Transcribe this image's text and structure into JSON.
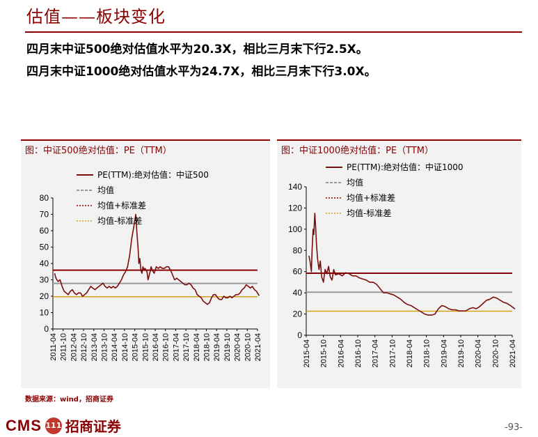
{
  "header": {
    "title": "估值——板块变化",
    "summary_1": "四月末中证500绝对估值水平为20.3X，相比三月末下行2.5X。",
    "summary_2": "四月末中证1000绝对估值水平为24.7X，相比三月末下行3.0X。"
  },
  "footer": {
    "source": "数据来源：wind，招商证券",
    "logo_text": "CMS",
    "logo_badge": "111",
    "logo_cn": "招商证券",
    "page": "-93-"
  },
  "colors": {
    "pe": "#7b0c0c",
    "mean": "#999999",
    "plus": "#8b0000",
    "minus": "#d4a017"
  },
  "chart_data": [
    {
      "type": "line",
      "panel_title": "图：中证500绝对估值：PE（TTM）",
      "ylim": [
        0,
        80
      ],
      "yticks": [
        "0",
        "10",
        "20",
        "30",
        "40",
        "50",
        "60",
        "70",
        "80"
      ],
      "xticks": [
        "2011-04",
        "2011-10",
        "2012-04",
        "2012-10",
        "2013-04",
        "2013-10",
        "2014-04",
        "2014-10",
        "2015-04",
        "2015-10",
        "2016-04",
        "2016-10",
        "2017-04",
        "2017-10",
        "2018-04",
        "2018-10",
        "2019-04",
        "2019-10",
        "2020-04",
        "2020-10",
        "2021-04"
      ],
      "legend": [
        "PE(TTM):绝对估值：中证500",
        "均值",
        "均值+标准差",
        "均值-标准差"
      ],
      "mean": 27.8,
      "plus_std": 35.9,
      "minus_std": 19.7,
      "series": [
        {
          "name": "PE(TTM):绝对估值：中证500",
          "x": [
            2011.33,
            2011.4,
            2011.5,
            2011.6,
            2011.7,
            2011.8,
            2011.9,
            2012.0,
            2012.1,
            2012.2,
            2012.3,
            2012.4,
            2012.5,
            2012.6,
            2012.7,
            2012.8,
            2012.9,
            2013.0,
            2013.1,
            2013.2,
            2013.3,
            2013.4,
            2013.5,
            2013.6,
            2013.7,
            2013.8,
            2013.9,
            2014.0,
            2014.1,
            2014.2,
            2014.3,
            2014.4,
            2014.5,
            2014.6,
            2014.7,
            2014.8,
            2014.9,
            2015.0,
            2015.1,
            2015.2,
            2015.3,
            2015.35,
            2015.42,
            2015.45,
            2015.5,
            2015.55,
            2015.6,
            2015.65,
            2015.7,
            2015.75,
            2015.85,
            2015.9,
            2016.0,
            2016.05,
            2016.1,
            2016.2,
            2016.3,
            2016.4,
            2016.5,
            2016.6,
            2016.7,
            2016.8,
            2016.9,
            2017.0,
            2017.1,
            2017.2,
            2017.3,
            2017.4,
            2017.5,
            2017.6,
            2017.7,
            2017.8,
            2017.9,
            2018.0,
            2018.1,
            2018.2,
            2018.3,
            2018.4,
            2018.5,
            2018.6,
            2018.7,
            2018.8,
            2018.9,
            2019.0,
            2019.1,
            2019.2,
            2019.3,
            2019.4,
            2019.5,
            2019.6,
            2019.7,
            2019.8,
            2019.9,
            2020.0,
            2020.1,
            2020.2,
            2020.3,
            2020.4,
            2020.5,
            2020.6,
            2020.7,
            2020.8,
            2020.9,
            2021.0,
            2021.1,
            2021.2,
            2021.33
          ],
          "y": [
            34,
            31,
            29,
            30,
            26,
            23,
            22,
            21,
            23,
            24,
            22,
            21,
            22,
            22,
            20,
            21,
            22,
            24,
            26,
            25,
            24,
            25,
            26,
            27,
            28,
            26,
            25,
            26,
            25,
            26,
            25,
            26,
            28,
            30,
            33,
            35,
            38,
            45,
            55,
            62,
            70,
            60,
            48,
            40,
            43,
            36,
            34,
            38,
            36,
            37,
            35,
            30,
            35,
            38,
            36,
            34,
            38,
            37,
            38,
            37,
            37,
            38,
            38,
            36,
            33,
            30,
            31,
            30,
            29,
            28,
            27,
            27,
            28,
            27,
            25,
            24,
            21,
            20,
            19,
            17,
            16,
            15,
            16,
            19,
            21,
            21,
            19,
            18,
            18,
            20,
            19,
            19,
            20,
            19,
            20,
            21,
            21,
            22,
            24,
            25,
            27,
            26,
            25,
            26,
            24,
            23,
            20.3
          ]
        }
      ]
    },
    {
      "type": "line",
      "panel_title": "图：中证1000绝对估值：PE（TTM）",
      "ylim": [
        0,
        140
      ],
      "yticks": [
        "0",
        "20",
        "40",
        "60",
        "80",
        "100",
        "120",
        "140"
      ],
      "xticks": [
        "2015-04",
        "2015-10",
        "2016-04",
        "2016-10",
        "2017-04",
        "2017-10",
        "2018-04",
        "2018-10",
        "2019-04",
        "2019-10",
        "2020-04",
        "2020-10",
        "2021-04"
      ],
      "legend": [
        "PE(TTM):绝对估值：中证1000",
        "均值",
        "均值+标准差",
        "均值-标准差"
      ],
      "mean": 40.6,
      "plus_std": 58.5,
      "minus_std": 22.7,
      "series": [
        {
          "name": "PE(TTM):绝对估值：中证1000",
          "x": [
            2015.33,
            2015.36,
            2015.4,
            2015.42,
            2015.45,
            2015.47,
            2015.5,
            2015.52,
            2015.55,
            2015.58,
            2015.62,
            2015.66,
            2015.7,
            2015.75,
            2015.8,
            2015.85,
            2015.9,
            2015.95,
            2016.0,
            2016.05,
            2016.1,
            2016.2,
            2016.3,
            2016.4,
            2016.5,
            2016.6,
            2016.7,
            2016.8,
            2016.9,
            2017.0,
            2017.1,
            2017.2,
            2017.3,
            2017.4,
            2017.5,
            2017.6,
            2017.7,
            2017.8,
            2017.9,
            2018.0,
            2018.1,
            2018.2,
            2018.3,
            2018.4,
            2018.5,
            2018.6,
            2018.7,
            2018.8,
            2018.9,
            2019.0,
            2019.1,
            2019.2,
            2019.3,
            2019.4,
            2019.5,
            2019.6,
            2019.7,
            2019.8,
            2019.9,
            2020.0,
            2020.1,
            2020.2,
            2020.3,
            2020.4,
            2020.5,
            2020.6,
            2020.7,
            2020.8,
            2020.9,
            2021.0,
            2021.1,
            2021.2,
            2021.33
          ],
          "y": [
            75,
            70,
            60,
            80,
            100,
            95,
            115,
            105,
            85,
            72,
            62,
            70,
            55,
            50,
            62,
            58,
            65,
            55,
            52,
            62,
            57,
            58,
            56,
            59,
            58,
            56,
            56,
            54,
            53,
            52,
            50,
            50,
            48,
            44,
            40,
            40,
            39,
            38,
            36,
            34,
            31,
            29,
            28,
            26,
            24,
            22,
            20,
            19,
            19,
            20,
            25,
            28,
            27,
            25,
            24,
            24,
            23,
            23,
            23,
            25,
            26,
            25,
            27,
            30,
            33,
            34,
            36,
            35,
            33,
            31,
            30,
            28,
            24.7
          ]
        }
      ]
    }
  ]
}
